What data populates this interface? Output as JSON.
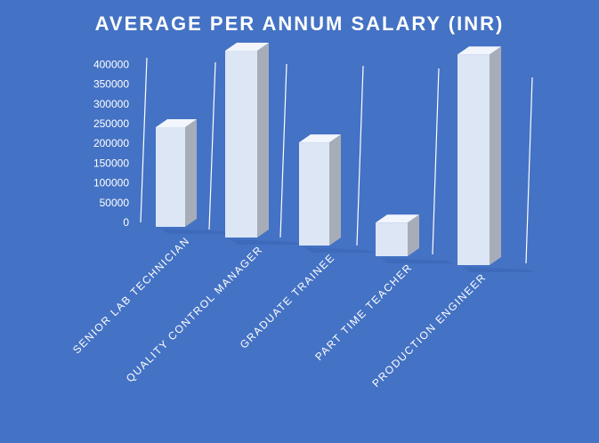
{
  "chart_data": {
    "type": "bar",
    "title": "AVERAGE PER ANNUM SALARY (INR)",
    "categories": [
      "SENIOR LAB TECHNICIAN",
      "QUALITY CONTROL MANAGER",
      "GRADUATE TRAINEE",
      "PART TIME TEACHER",
      "PRODUCTION ENGINEER"
    ],
    "values": [
      200000,
      350000,
      190000,
      60000,
      370000
    ],
    "ylim": [
      0,
      400000
    ],
    "yticks": [
      "0",
      "50000",
      "100000",
      "150000",
      "200000",
      "250000",
      "300000",
      "350000",
      "400000"
    ],
    "style": "3d-column",
    "grid": true,
    "legend": "none",
    "colors": {
      "background": "#4472C4",
      "bar_front": "#DDE6F5",
      "bar_top": "#F2F5FB",
      "bar_side": "#A7ADB8",
      "floor_shadow": "#3A64B4",
      "gridline": "#FFFFFF",
      "text": "#FFFFFF"
    }
  }
}
